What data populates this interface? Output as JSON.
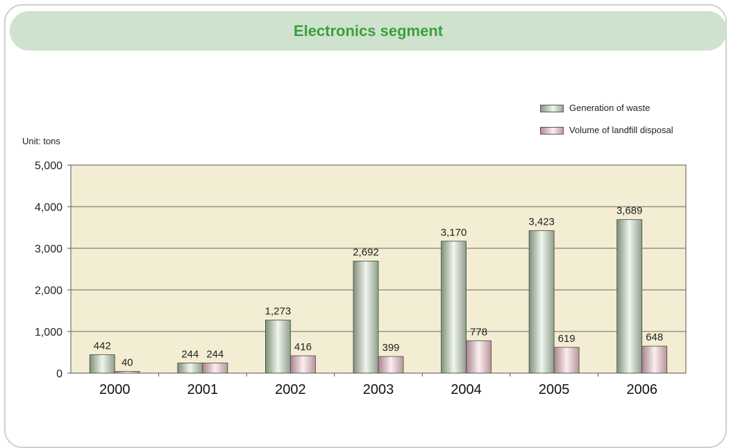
{
  "title": "Electronics segment",
  "unit_label": "Unit: tons",
  "colors": {
    "plot_background": "#f3edd3",
    "series_generation": "#c9d3c4",
    "series_landfill": "#e6c3c7",
    "title_bar": "#cfe2cd",
    "title_text": "#3aa040"
  },
  "chart_data": {
    "type": "bar",
    "title": "Electronics segment",
    "ylabel": "Unit: tons",
    "xlabel": "",
    "categories": [
      "2000",
      "2001",
      "2002",
      "2003",
      "2004",
      "2005",
      "2006"
    ],
    "ylim": [
      0,
      5000
    ],
    "yticks": [
      0,
      1000,
      2000,
      3000,
      4000,
      5000
    ],
    "ytick_labels": [
      "0",
      "1,000",
      "2,000",
      "3,000",
      "4,000",
      "5,000"
    ],
    "grid": "horizontal",
    "legend_position": "top-right",
    "series": [
      {
        "name": "Generation of waste",
        "values": [
          442,
          244,
          1273,
          2692,
          3170,
          3423,
          3689
        ],
        "labels": [
          "442",
          "244",
          "1,273",
          "2,692",
          "3,170",
          "3,423",
          "3,689"
        ]
      },
      {
        "name": "Volume of landfill disposal",
        "values": [
          40,
          244,
          416,
          399,
          778,
          619,
          648
        ],
        "labels": [
          "40",
          "244",
          "416",
          "399",
          "778",
          "619",
          "648"
        ]
      }
    ]
  }
}
